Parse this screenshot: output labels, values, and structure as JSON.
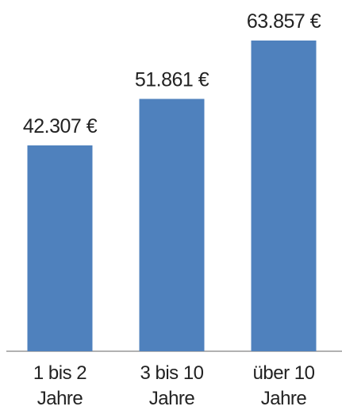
{
  "chart_data": {
    "type": "bar",
    "categories": [
      "1 bis 2 Jahre",
      "3 bis 10 Jahre",
      "über 10 Jahre"
    ],
    "values": [
      42307,
      51861,
      63857
    ],
    "value_labels": [
      "42.307 €",
      "51.861 €",
      "63.857 €"
    ],
    "color": "#4f81bd"
  }
}
